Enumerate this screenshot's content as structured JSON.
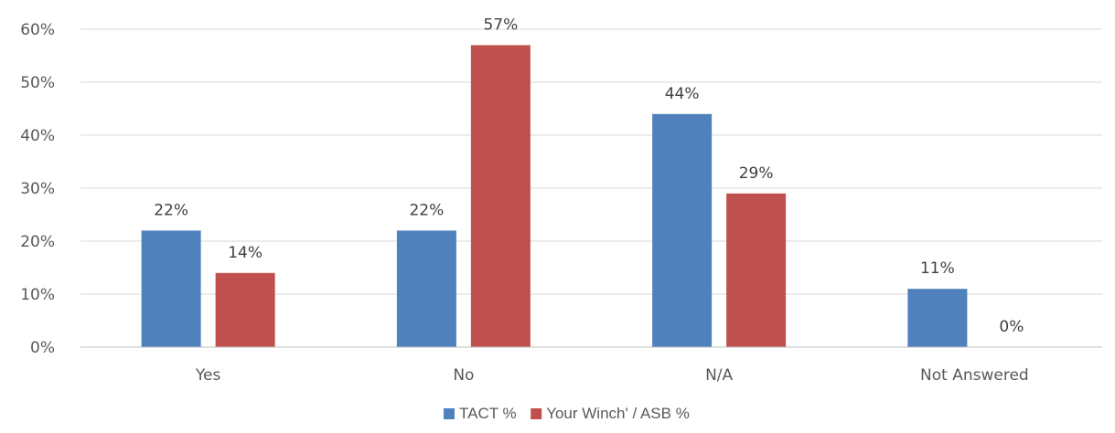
{
  "chart_data": {
    "type": "bar",
    "categories": [
      "Yes",
      "No",
      "N/A",
      "Not Answered"
    ],
    "series": [
      {
        "name": "TACT %",
        "color": "#4F81BD",
        "values": [
          22,
          22,
          44,
          11
        ],
        "labels": [
          "22%",
          "22%",
          "44%",
          "11%"
        ]
      },
      {
        "name": "Your Winch' / ASB %",
        "color": "#C0504D",
        "values": [
          14,
          57,
          29,
          0
        ],
        "labels": [
          "14%",
          "57%",
          "29%",
          "0%"
        ]
      }
    ],
    "ylim": [
      0,
      60
    ],
    "yticks": [
      {
        "value": 0,
        "label": "0%"
      },
      {
        "value": 10,
        "label": "10%"
      },
      {
        "value": 20,
        "label": "20%"
      },
      {
        "value": 30,
        "label": "30%"
      },
      {
        "value": 40,
        "label": "40%"
      },
      {
        "value": 50,
        "label": "50%"
      },
      {
        "value": 60,
        "label": "60%"
      }
    ],
    "grid": true,
    "legend_position": "bottom",
    "gridline_color": "#D9D9D9",
    "axis_color": "#BFBFBF"
  }
}
